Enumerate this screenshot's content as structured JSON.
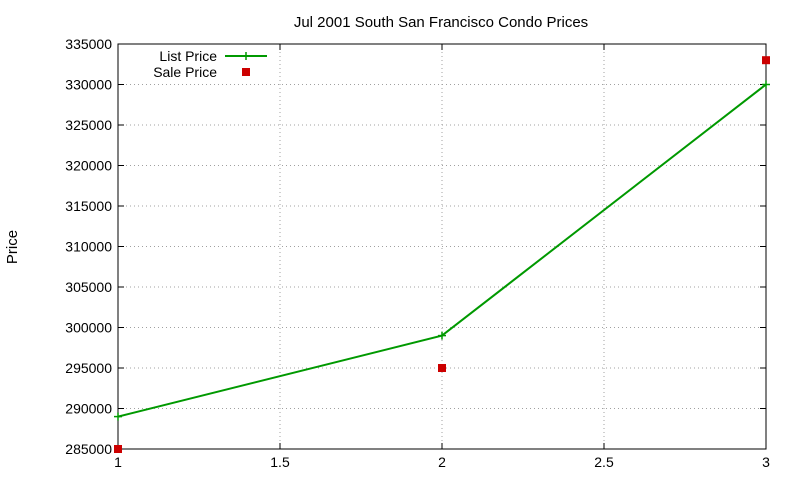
{
  "chart_data": {
    "type": "line",
    "title": "Jul 2001 South San Francisco Condo Prices",
    "xlabel": "",
    "ylabel": "Price",
    "xlim": [
      1,
      3
    ],
    "ylim": [
      285000,
      335000
    ],
    "xticks": [
      1,
      1.5,
      2,
      2.5,
      3
    ],
    "xtick_labels": [
      "1",
      "1.5",
      "2",
      "2.5",
      "3"
    ],
    "yticks": [
      285000,
      290000,
      295000,
      300000,
      305000,
      310000,
      315000,
      320000,
      325000,
      330000,
      335000
    ],
    "ytick_labels": [
      "285000",
      "290000",
      "295000",
      "300000",
      "305000",
      "310000",
      "315000",
      "320000",
      "325000",
      "330000",
      "335000"
    ],
    "grid": true,
    "legend_position": "top-left",
    "series": [
      {
        "name": "List Price",
        "style": "linespoints",
        "marker": "plus",
        "color": "#009900",
        "x": [
          1,
          2,
          3
        ],
        "y": [
          289000,
          299000,
          330000
        ]
      },
      {
        "name": "Sale Price",
        "style": "points",
        "marker": "square",
        "color": "#cc0000",
        "x": [
          1,
          2,
          3
        ],
        "y": [
          285000,
          295000,
          333000
        ]
      }
    ]
  }
}
